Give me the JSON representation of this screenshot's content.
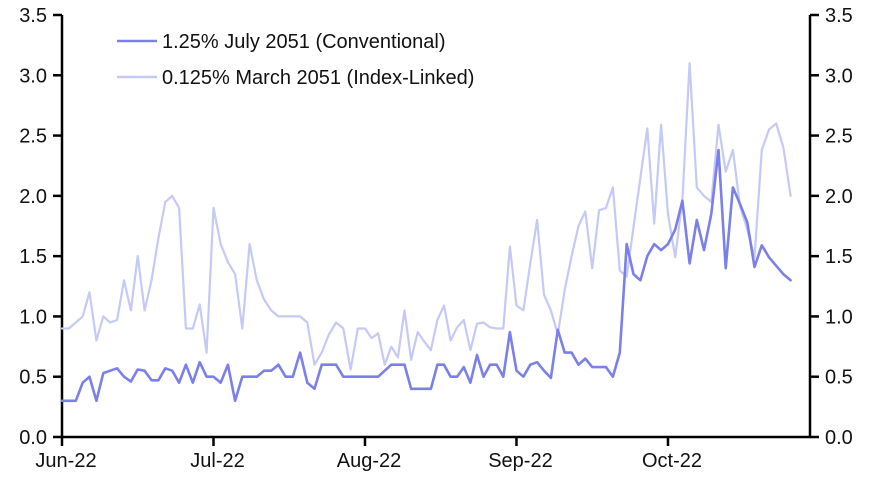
{
  "chart_data": {
    "type": "line",
    "title": "",
    "x_tick_labels": [
      "Jun-22",
      "Jul-22",
      "Aug-22",
      "Sep-22",
      "Oct-22"
    ],
    "y_tick_labels": [
      "0.0",
      "0.5",
      "1.0",
      "1.5",
      "2.0",
      "2.5",
      "3.0",
      "3.5"
    ],
    "y_ticks": [
      0.0,
      0.5,
      1.0,
      1.5,
      2.0,
      2.5,
      3.0,
      3.5
    ],
    "ylim": [
      0,
      3.5
    ],
    "grid": false,
    "legend_position": "top-left",
    "axis_color": "#000000",
    "dual_y_axis": true,
    "days_per_month": [
      22,
      21,
      23,
      22,
      21
    ],
    "series": [
      {
        "name": "0.125% March 2051 (Index-Linked)",
        "color": "#c5c9f5",
        "line_width": 2.2,
        "values_by_month": [
          [
            0.9,
            0.9,
            0.95,
            1.0,
            1.2,
            0.8,
            1.0,
            0.95,
            0.97,
            1.3,
            1.05,
            1.5,
            1.05,
            1.3,
            1.65,
            1.95,
            2.0,
            1.9,
            0.9,
            0.9,
            1.1,
            0.7
          ],
          [
            1.9,
            1.6,
            1.45,
            1.35,
            0.9,
            1.6,
            1.3,
            1.14,
            1.05,
            1.0,
            1.0,
            1.0,
            1.0,
            0.95,
            0.6,
            0.7,
            0.85,
            0.95,
            0.9,
            0.56,
            0.9
          ],
          [
            0.9,
            0.82,
            0.86,
            0.6,
            0.75,
            0.66,
            1.05,
            0.64,
            0.87,
            0.79,
            0.72,
            0.97,
            1.09,
            0.8,
            0.91,
            0.97,
            0.72,
            0.94,
            0.95,
            0.91,
            0.9,
            0.9,
            1.58
          ],
          [
            1.09,
            1.05,
            1.44,
            1.8,
            1.18,
            1.05,
            0.85,
            1.22,
            1.5,
            1.75,
            1.87,
            1.4,
            1.88,
            1.9,
            2.07,
            1.38,
            1.33,
            1.74,
            2.15,
            2.56,
            1.77,
            2.59
          ],
          [
            1.85,
            1.49,
            1.97,
            3.1,
            2.07,
            2.0,
            1.95,
            2.59,
            2.2,
            2.38,
            1.91,
            1.72,
            1.49,
            2.38,
            2.55,
            2.6,
            2.4,
            2.0
          ]
        ]
      },
      {
        "name": "1.25% July 2051 (Conventional)",
        "color": "#7b80e8",
        "line_width": 2.6,
        "values_by_month": [
          [
            0.3,
            0.3,
            0.3,
            0.45,
            0.5,
            0.3,
            0.53,
            0.55,
            0.57,
            0.5,
            0.46,
            0.56,
            0.55,
            0.47,
            0.47,
            0.57,
            0.55,
            0.45,
            0.6,
            0.45,
            0.62,
            0.5
          ],
          [
            0.5,
            0.45,
            0.6,
            0.3,
            0.5,
            0.5,
            0.5,
            0.55,
            0.55,
            0.6,
            0.5,
            0.5,
            0.7,
            0.45,
            0.4,
            0.6,
            0.6,
            0.6,
            0.5,
            0.5,
            0.5
          ],
          [
            0.5,
            0.5,
            0.5,
            0.55,
            0.6,
            0.6,
            0.6,
            0.4,
            0.4,
            0.4,
            0.4,
            0.6,
            0.6,
            0.5,
            0.5,
            0.58,
            0.45,
            0.68,
            0.5,
            0.6,
            0.6,
            0.5,
            0.87
          ],
          [
            0.55,
            0.5,
            0.6,
            0.62,
            0.55,
            0.49,
            0.89,
            0.7,
            0.7,
            0.6,
            0.65,
            0.58,
            0.58,
            0.58,
            0.5,
            0.7,
            1.6,
            1.35,
            1.3,
            1.5,
            1.6,
            1.55
          ],
          [
            1.6,
            1.72,
            1.96,
            1.44,
            1.8,
            1.55,
            1.85,
            2.38,
            1.4,
            2.07,
            1.93,
            1.78,
            1.41,
            1.59,
            1.49,
            1.42,
            1.35,
            1.3
          ]
        ]
      }
    ],
    "legend": [
      {
        "label": "1.25% July 2051 (Conventional)",
        "color": "#7b80e8"
      },
      {
        "label": "0.125% March 2051 (Index-Linked)",
        "color": "#c5c9f5"
      }
    ]
  }
}
